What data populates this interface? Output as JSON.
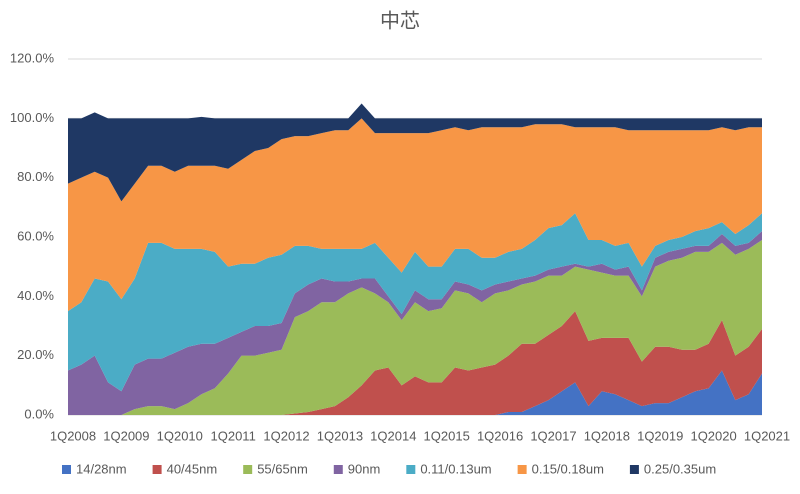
{
  "chart_data": {
    "type": "stacked_area",
    "title": "中芯",
    "categories": [
      "1Q2008",
      null,
      null,
      null,
      "1Q2009",
      null,
      null,
      null,
      "1Q2010",
      null,
      null,
      null,
      "1Q2011",
      null,
      null,
      null,
      "1Q2012",
      null,
      null,
      null,
      "1Q2013",
      null,
      null,
      null,
      "1Q2014",
      null,
      null,
      null,
      "1Q2015",
      null,
      null,
      null,
      "1Q2016",
      null,
      null,
      null,
      "1Q2017",
      null,
      null,
      null,
      "1Q2018",
      null,
      null,
      null,
      "1Q2019",
      null,
      null,
      null,
      "1Q2020",
      null,
      null,
      null,
      "1Q2021"
    ],
    "ylim": [
      0,
      120
    ],
    "yticks": [
      {
        "value": 0,
        "label": "0.0%"
      },
      {
        "value": 20,
        "label": "20.0%"
      },
      {
        "value": 40,
        "label": "40.0%"
      },
      {
        "value": 60,
        "label": "60.0%"
      },
      {
        "value": 80,
        "label": "80.0%"
      },
      {
        "value": 100,
        "label": "100.0%"
      },
      {
        "value": 120,
        "label": "120.0%"
      }
    ],
    "grid": true,
    "series": [
      {
        "name": "14/28nm",
        "color": "#4472c4",
        "values": [
          0,
          0,
          0,
          0,
          0,
          0,
          0,
          0,
          0,
          0,
          0,
          0,
          0,
          0,
          0,
          0,
          0,
          0,
          0,
          0,
          0,
          0,
          0,
          0,
          0,
          0,
          0,
          0,
          0,
          0,
          0,
          0,
          0,
          1,
          1,
          3,
          5,
          8,
          11,
          3,
          8,
          7,
          5,
          3,
          4,
          4,
          6,
          8,
          9,
          15,
          5,
          7,
          14
        ]
      },
      {
        "name": "40/45nm",
        "color": "#c0504d",
        "values": [
          0,
          0,
          0,
          0,
          0,
          0,
          0,
          0,
          0,
          0,
          0,
          0,
          0,
          0,
          0,
          0,
          0,
          0.5,
          1,
          2,
          3,
          6,
          10,
          15,
          16,
          10,
          13,
          11,
          11,
          16,
          15,
          16,
          17,
          19,
          23,
          21,
          22,
          22,
          24,
          22,
          18,
          19,
          21,
          15,
          19,
          19,
          16,
          14,
          15,
          17,
          15,
          16,
          15
        ]
      },
      {
        "name": "55/65nm",
        "color": "#9bbb59",
        "values": [
          0,
          0,
          0,
          0,
          0,
          2,
          3,
          3,
          2,
          4,
          7,
          9,
          14,
          20,
          20,
          21,
          22,
          32.5,
          34,
          36,
          35,
          35,
          33,
          26,
          22,
          22,
          25,
          24,
          25,
          26,
          26,
          22,
          24,
          22,
          20,
          21,
          20,
          17,
          15,
          24,
          22,
          21,
          21,
          22,
          27,
          29,
          31,
          33,
          31,
          26,
          34,
          33,
          30
        ]
      },
      {
        "name": "90nm",
        "color": "#8064a2",
        "values": [
          15,
          17,
          20,
          11,
          8,
          15,
          16,
          16,
          19,
          19,
          17,
          15,
          12,
          8,
          10,
          9,
          9,
          8,
          9,
          8,
          7,
          4,
          3,
          5,
          2,
          2,
          4,
          4,
          3,
          3,
          3,
          4,
          3,
          3,
          2,
          2,
          2,
          3,
          1,
          1,
          3,
          2,
          3,
          2,
          3,
          3,
          3,
          2,
          2,
          3,
          3,
          2,
          3
        ]
      },
      {
        "name": "0.11/0.13um",
        "color": "#4bacc6",
        "values": [
          20,
          21,
          26,
          34,
          31,
          29,
          39,
          39,
          35,
          33,
          32,
          31,
          24,
          23,
          21,
          23,
          23,
          16,
          13,
          10,
          11,
          11,
          10,
          12,
          13,
          14,
          13,
          11,
          11,
          11,
          12,
          11,
          9,
          10,
          10,
          12,
          14,
          14,
          17,
          9,
          8,
          8,
          8,
          8,
          4,
          4,
          4,
          5,
          6,
          4,
          4,
          6,
          6
        ]
      },
      {
        "name": "0.15/0.18um",
        "color": "#f79646",
        "values": [
          43,
          42,
          36,
          35,
          33,
          32,
          26,
          26,
          26,
          28,
          28,
          29,
          33,
          35,
          38,
          37,
          39,
          37,
          37,
          39,
          40,
          40,
          44,
          37,
          42,
          47,
          40,
          45,
          46,
          41,
          40,
          44,
          44,
          42,
          41,
          39,
          35,
          34,
          29,
          38,
          38,
          40,
          38,
          46,
          39,
          37,
          36,
          34,
          33,
          32,
          35,
          33,
          29
        ]
      },
      {
        "name": "0.25/0.35um",
        "color": "#1f3864",
        "values": [
          22,
          20,
          20,
          20,
          28,
          22,
          16,
          16,
          18,
          16,
          16.5,
          16,
          17,
          14,
          11,
          10,
          7,
          6,
          6,
          5,
          4,
          4,
          5,
          5,
          5,
          5,
          5,
          5,
          4,
          3,
          4,
          3,
          3,
          3,
          3,
          2,
          2,
          2,
          3,
          3,
          3,
          3,
          4,
          4,
          4,
          4,
          4,
          4,
          4,
          3,
          4,
          3,
          3
        ]
      }
    ]
  }
}
